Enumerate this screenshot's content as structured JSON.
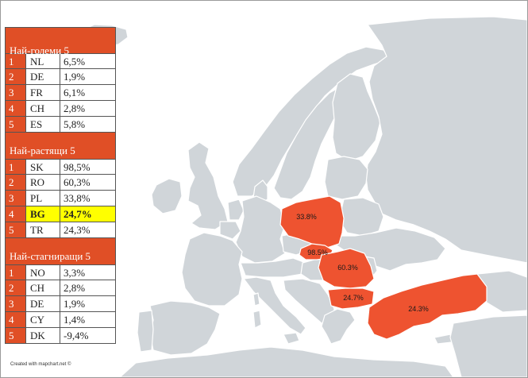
{
  "legend": {
    "sections": [
      {
        "title": "Най-големи 5",
        "rows": [
          {
            "rank": "1",
            "code": "NL",
            "value": "6,5%"
          },
          {
            "rank": "2",
            "code": "DE",
            "value": "1,9%"
          },
          {
            "rank": "3",
            "code": "FR",
            "value": "6,1%"
          },
          {
            "rank": "4",
            "code": "CH",
            "value": "2,8%"
          },
          {
            "rank": "5",
            "code": "ES",
            "value": "5,8%"
          }
        ]
      },
      {
        "title": "Най-растящи 5",
        "rows": [
          {
            "rank": "1",
            "code": "SK",
            "value": "98,5%"
          },
          {
            "rank": "2",
            "code": "RO",
            "value": "60,3%"
          },
          {
            "rank": "3",
            "code": "PL",
            "value": "33,8%"
          },
          {
            "rank": "4",
            "code": "BG",
            "value": "24,7%",
            "highlight": true
          },
          {
            "rank": "5",
            "code": "TR",
            "value": "24,3%"
          }
        ]
      },
      {
        "title": "Най-стагниращи 5",
        "rows": [
          {
            "rank": "1",
            "code": "NO",
            "value": "3,3%"
          },
          {
            "rank": "2",
            "code": "CH",
            "value": "2,8%"
          },
          {
            "rank": "3",
            "code": "DE",
            "value": "1,9%"
          },
          {
            "rank": "4",
            "code": "CY",
            "value": "1,4%"
          },
          {
            "rank": "5",
            "code": "DK",
            "value": "-9,4%"
          }
        ]
      }
    ]
  },
  "map": {
    "base_color": "#d0d5d9",
    "highlight_color": "#ee5330",
    "highlight_row_color": "#ffff00",
    "labels": {
      "poland": "33.8%",
      "slovakia": "98.5%",
      "romania": "60.3%",
      "bulgaria": "24.7%",
      "turkey": "24.3%"
    }
  },
  "credit": "Created with mapchart.net ©"
}
